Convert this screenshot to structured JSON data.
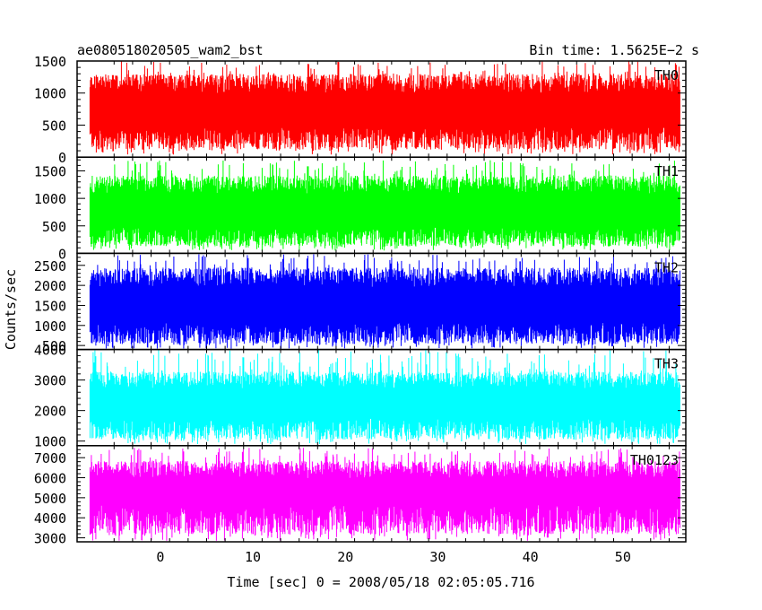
{
  "header": {
    "title": "ae080518020505_wam2_bst",
    "bin_time": "Bin time: 1.5625E−2 s"
  },
  "axes": {
    "ylabel": "Counts/sec",
    "xlabel": "Time [sec] 0 = 2008/05/18 02:05:05.716"
  },
  "chart_data": {
    "type": "line",
    "title": "ae080518020505_wam2_bst",
    "xlabel": "Time [sec] 0 = 2008/05/18 02:05:05.716",
    "ylabel": "Counts/sec",
    "xlim": [
      -9,
      56.8
    ],
    "x_range": [
      -7.6,
      56.2
    ],
    "x_ticks": [
      0,
      10,
      20,
      30,
      40,
      50
    ],
    "bin_time_s": 0.015625,
    "panels": [
      {
        "name": "TH0",
        "color": "#ff0000",
        "ylim": [
          0,
          1500
        ],
        "y_ticks": [
          0,
          500,
          1000,
          1500
        ],
        "mean": 680,
        "typical_low": 300,
        "typical_high": 1150,
        "min": 40,
        "max": 1500
      },
      {
        "name": "TH1",
        "color": "#00ff00",
        "ylim": [
          0,
          1750
        ],
        "y_ticks": [
          0,
          500,
          1000,
          1500
        ],
        "mean": 740,
        "typical_low": 300,
        "typical_high": 1250,
        "min": 50,
        "max": 1700
      },
      {
        "name": "TH2",
        "color": "#0000ff",
        "ylim": [
          400,
          2800
        ],
        "y_ticks": [
          500,
          1000,
          1500,
          2000,
          2500
        ],
        "mean": 1450,
        "typical_low": 800,
        "typical_high": 2200,
        "min": 420,
        "max": 2780
      },
      {
        "name": "TH3",
        "color": "#00ffff",
        "ylim": [
          850,
          4000
        ],
        "y_ticks": [
          1000,
          2000,
          3000,
          4000
        ],
        "mean": 2300,
        "typical_low": 1400,
        "typical_high": 3000,
        "min": 900,
        "max": 4000
      },
      {
        "name": "TH0123",
        "color": "#ff00ff",
        "ylim": [
          2800,
          7600
        ],
        "y_ticks": [
          3000,
          4000,
          5000,
          6000,
          7000
        ],
        "mean": 5000,
        "typical_low": 3900,
        "typical_high": 6400,
        "min": 2850,
        "max": 7500
      }
    ]
  }
}
